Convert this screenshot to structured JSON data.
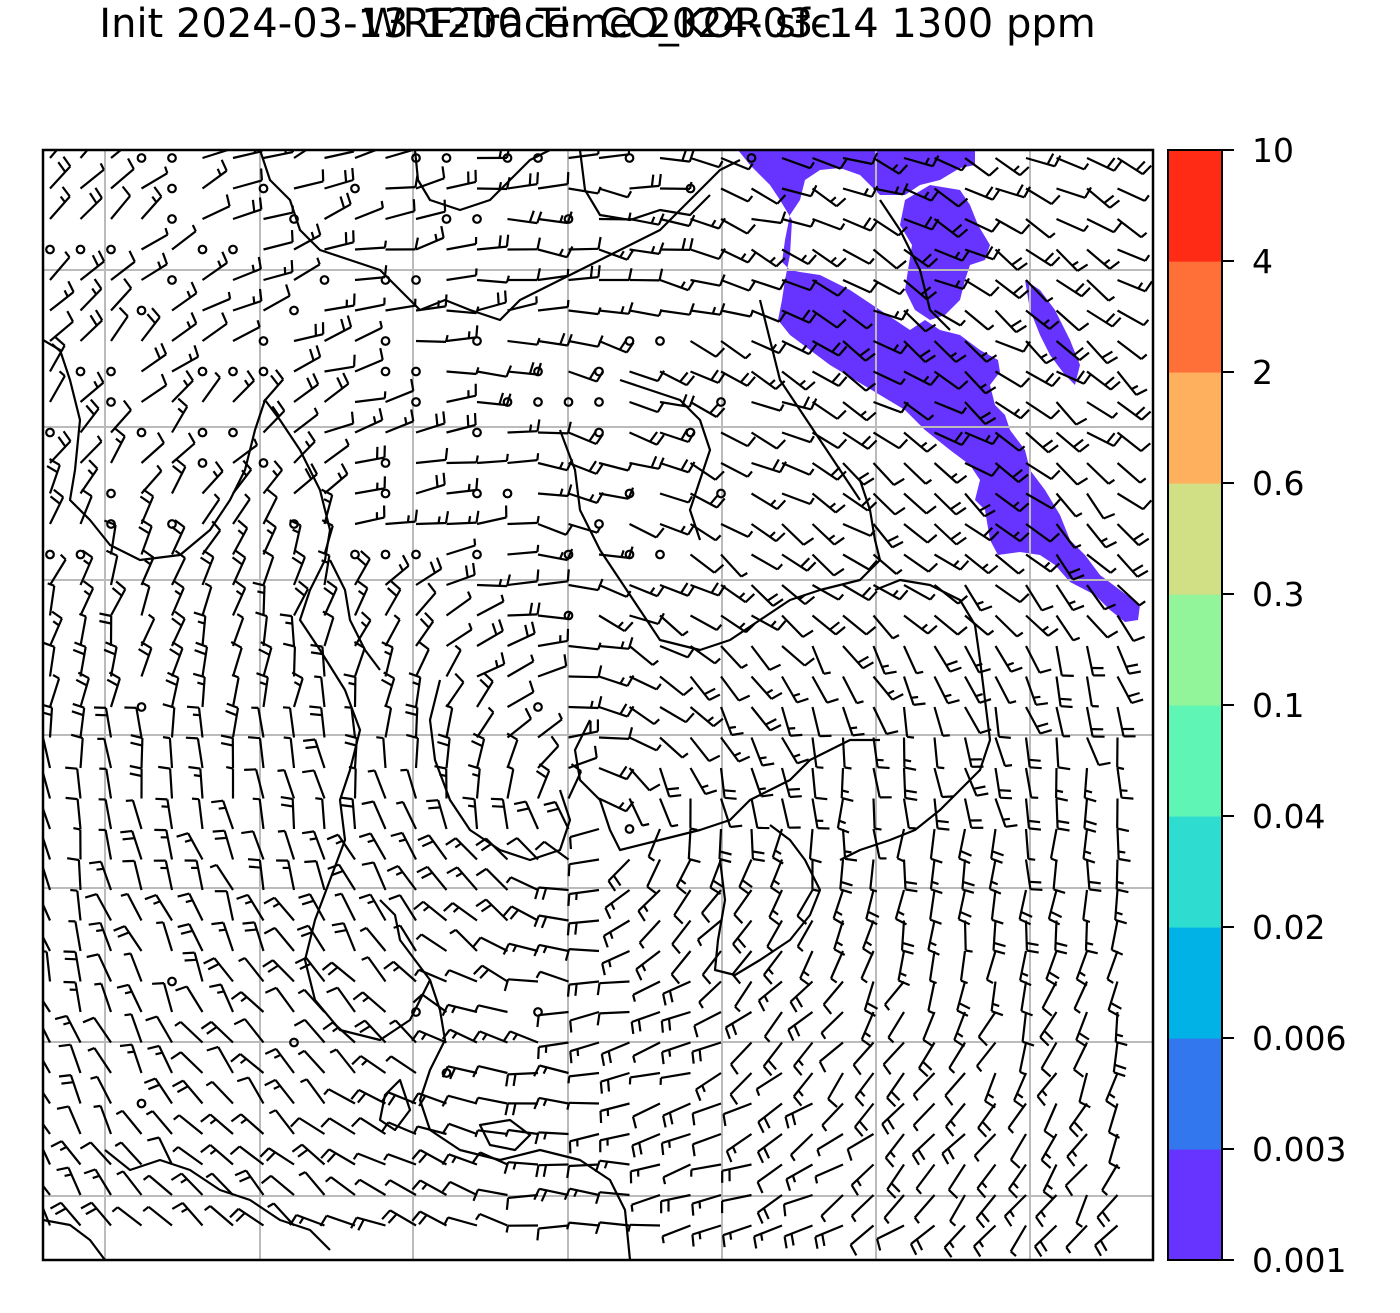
{
  "title": {
    "line1": "WRF-Tracer CO_KOR sfc",
    "line2": "Init 2024-03-13 1200 Time 2024-03-14 1300 ppm"
  },
  "colorbar": {
    "levels": [
      "0.001",
      "0.003",
      "0.006",
      "0.02",
      "0.04",
      "0.1",
      "0.3",
      "0.6",
      "2",
      "4",
      "10"
    ],
    "colors": [
      "#6633ff",
      "#3377ee",
      "#00b2e6",
      "#2edcd0",
      "#5ef5b5",
      "#92f59a",
      "#d2e085",
      "#ffb05e",
      "#ff7038",
      "#ff2b14"
    ]
  },
  "map": {
    "plume_color": "#6633ff",
    "grid_color": "#bbbbbb",
    "wind_symbol_color": "#000000"
  }
}
